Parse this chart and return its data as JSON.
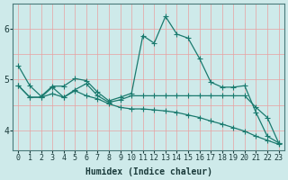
{
  "title": "",
  "xlabel": "Humidex (Indice chaleur)",
  "x_values": [
    0,
    1,
    2,
    3,
    4,
    5,
    6,
    7,
    8,
    9,
    10,
    11,
    12,
    13,
    14,
    15,
    16,
    17,
    18,
    19,
    20,
    21,
    22,
    23
  ],
  "lines": [
    [
      5.27,
      4.88,
      4.67,
      4.87,
      4.87,
      5.02,
      4.98,
      4.75,
      4.58,
      4.65,
      4.73,
      5.87,
      5.72,
      6.25,
      5.9,
      5.82,
      5.42,
      4.95,
      4.85,
      4.85,
      4.88,
      4.35,
      3.88,
      3.75
    ],
    [
      4.88,
      4.65,
      4.65,
      4.85,
      4.65,
      4.8,
      4.92,
      4.68,
      4.55,
      4.6,
      4.68,
      4.68,
      4.68,
      4.68,
      4.68,
      4.68,
      4.68,
      4.68,
      4.68,
      4.68,
      4.68,
      4.45,
      4.25,
      3.75
    ],
    [
      4.88,
      4.65,
      4.65,
      4.72,
      4.65,
      4.78,
      4.68,
      4.62,
      4.52,
      4.45,
      4.42,
      4.42,
      4.4,
      4.38,
      4.35,
      4.3,
      4.25,
      4.18,
      4.12,
      4.05,
      3.98,
      3.88,
      3.8,
      3.72
    ]
  ],
  "line_color": "#1a7a6e",
  "marker": "+",
  "marker_size": 4,
  "line_width": 0.9,
  "bg_color": "#ceeaea",
  "grid_color_v": "#e8a0a0",
  "grid_color_h": "#e8a0a0",
  "ylim": [
    3.6,
    6.5
  ],
  "yticks": [
    4,
    5,
    6
  ],
  "xlim": [
    -0.5,
    23.5
  ],
  "fig_bg": "#ceeaea",
  "xlabel_fontsize": 7,
  "tick_fontsize": 6,
  "ytick_fontsize": 7
}
